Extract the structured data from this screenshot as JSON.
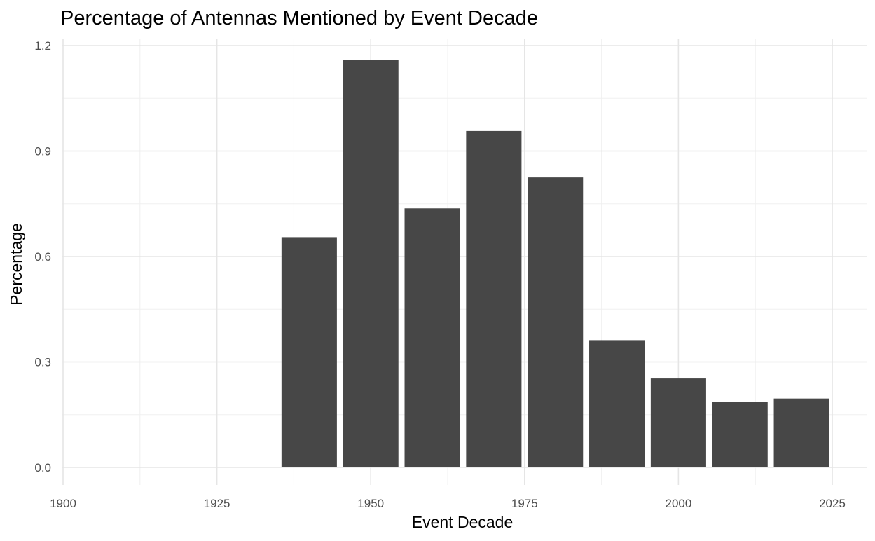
{
  "chart_data": {
    "type": "bar",
    "title": "Percentage of Antennas Mentioned by Event Decade",
    "xlabel": "Event Decade",
    "ylabel": "Percentage",
    "x": [
      1940,
      1950,
      1960,
      1970,
      1980,
      1990,
      2000,
      2010,
      2020
    ],
    "values": [
      0.655,
      1.16,
      0.737,
      0.957,
      0.825,
      0.362,
      0.253,
      0.186,
      0.196
    ],
    "bar_width": 9,
    "xlim": [
      1900,
      2025
    ],
    "ylim": [
      0,
      1.2
    ],
    "x_ticks": [
      1900,
      1925,
      1950,
      1975,
      2000,
      2025
    ],
    "x_tick_labels": [
      "1900",
      "1925",
      "1950",
      "1975",
      "2000",
      "2025"
    ],
    "y_ticks": [
      0,
      0.3,
      0.6,
      0.9,
      1.2
    ],
    "y_tick_labels": [
      "0.0",
      "0.3",
      "0.6",
      "0.9",
      "1.2"
    ],
    "bar_color": "#474747",
    "grid": true,
    "legend": "none"
  }
}
